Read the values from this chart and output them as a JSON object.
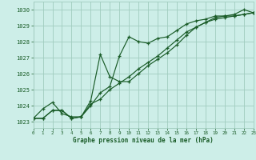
{
  "bg_color": "#cdeee8",
  "grid_color": "#a0ccbf",
  "line_color": "#1a5c28",
  "title": "Graphe pression niveau de la mer (hPa)",
  "xlim": [
    0,
    23
  ],
  "ylim": [
    1022.6,
    1030.5
  ],
  "xticks": [
    0,
    1,
    2,
    3,
    4,
    5,
    6,
    7,
    8,
    9,
    10,
    11,
    12,
    13,
    14,
    15,
    16,
    17,
    18,
    19,
    20,
    21,
    22,
    23
  ],
  "yticks": [
    1023,
    1024,
    1025,
    1026,
    1027,
    1028,
    1029,
    1030
  ],
  "series1_x": [
    0,
    1,
    2,
    3,
    4,
    5,
    6,
    7,
    8,
    9,
    10,
    11,
    12,
    13,
    14,
    15,
    16,
    17,
    18,
    19,
    20,
    21,
    22,
    23
  ],
  "series1_y": [
    1023.2,
    1023.2,
    1023.7,
    1023.7,
    1023.2,
    1023.3,
    1024.0,
    1024.8,
    1025.2,
    1027.1,
    1028.3,
    1028.0,
    1027.9,
    1028.2,
    1028.3,
    1028.7,
    1029.1,
    1029.3,
    1029.4,
    1029.6,
    1029.6,
    1029.7,
    1030.0,
    1029.8
  ],
  "series2_x": [
    0,
    1,
    2,
    3,
    4,
    5,
    6,
    7,
    8,
    9,
    10,
    11,
    12,
    13,
    14,
    15,
    16,
    17,
    18,
    19,
    20,
    21,
    22,
    23
  ],
  "series2_y": [
    1023.2,
    1023.2,
    1023.7,
    1023.7,
    1023.2,
    1023.3,
    1024.3,
    1027.2,
    1025.8,
    1025.5,
    1025.5,
    1026.0,
    1026.5,
    1026.9,
    1027.3,
    1027.8,
    1028.4,
    1028.9,
    1029.2,
    1029.5,
    1029.6,
    1029.6,
    1029.7,
    1029.8
  ],
  "series3_x": [
    0,
    1,
    2,
    3,
    4,
    5,
    6,
    7,
    8,
    9,
    10,
    11,
    12,
    13,
    14,
    15,
    16,
    17,
    18,
    19,
    20,
    21,
    22,
    23
  ],
  "series3_y": [
    1023.2,
    1023.8,
    1024.2,
    1023.5,
    1023.3,
    1023.3,
    1024.1,
    1024.4,
    1025.0,
    1025.4,
    1025.8,
    1026.3,
    1026.7,
    1027.1,
    1027.6,
    1028.1,
    1028.6,
    1028.9,
    1029.2,
    1029.4,
    1029.5,
    1029.6,
    1029.7,
    1029.8
  ]
}
